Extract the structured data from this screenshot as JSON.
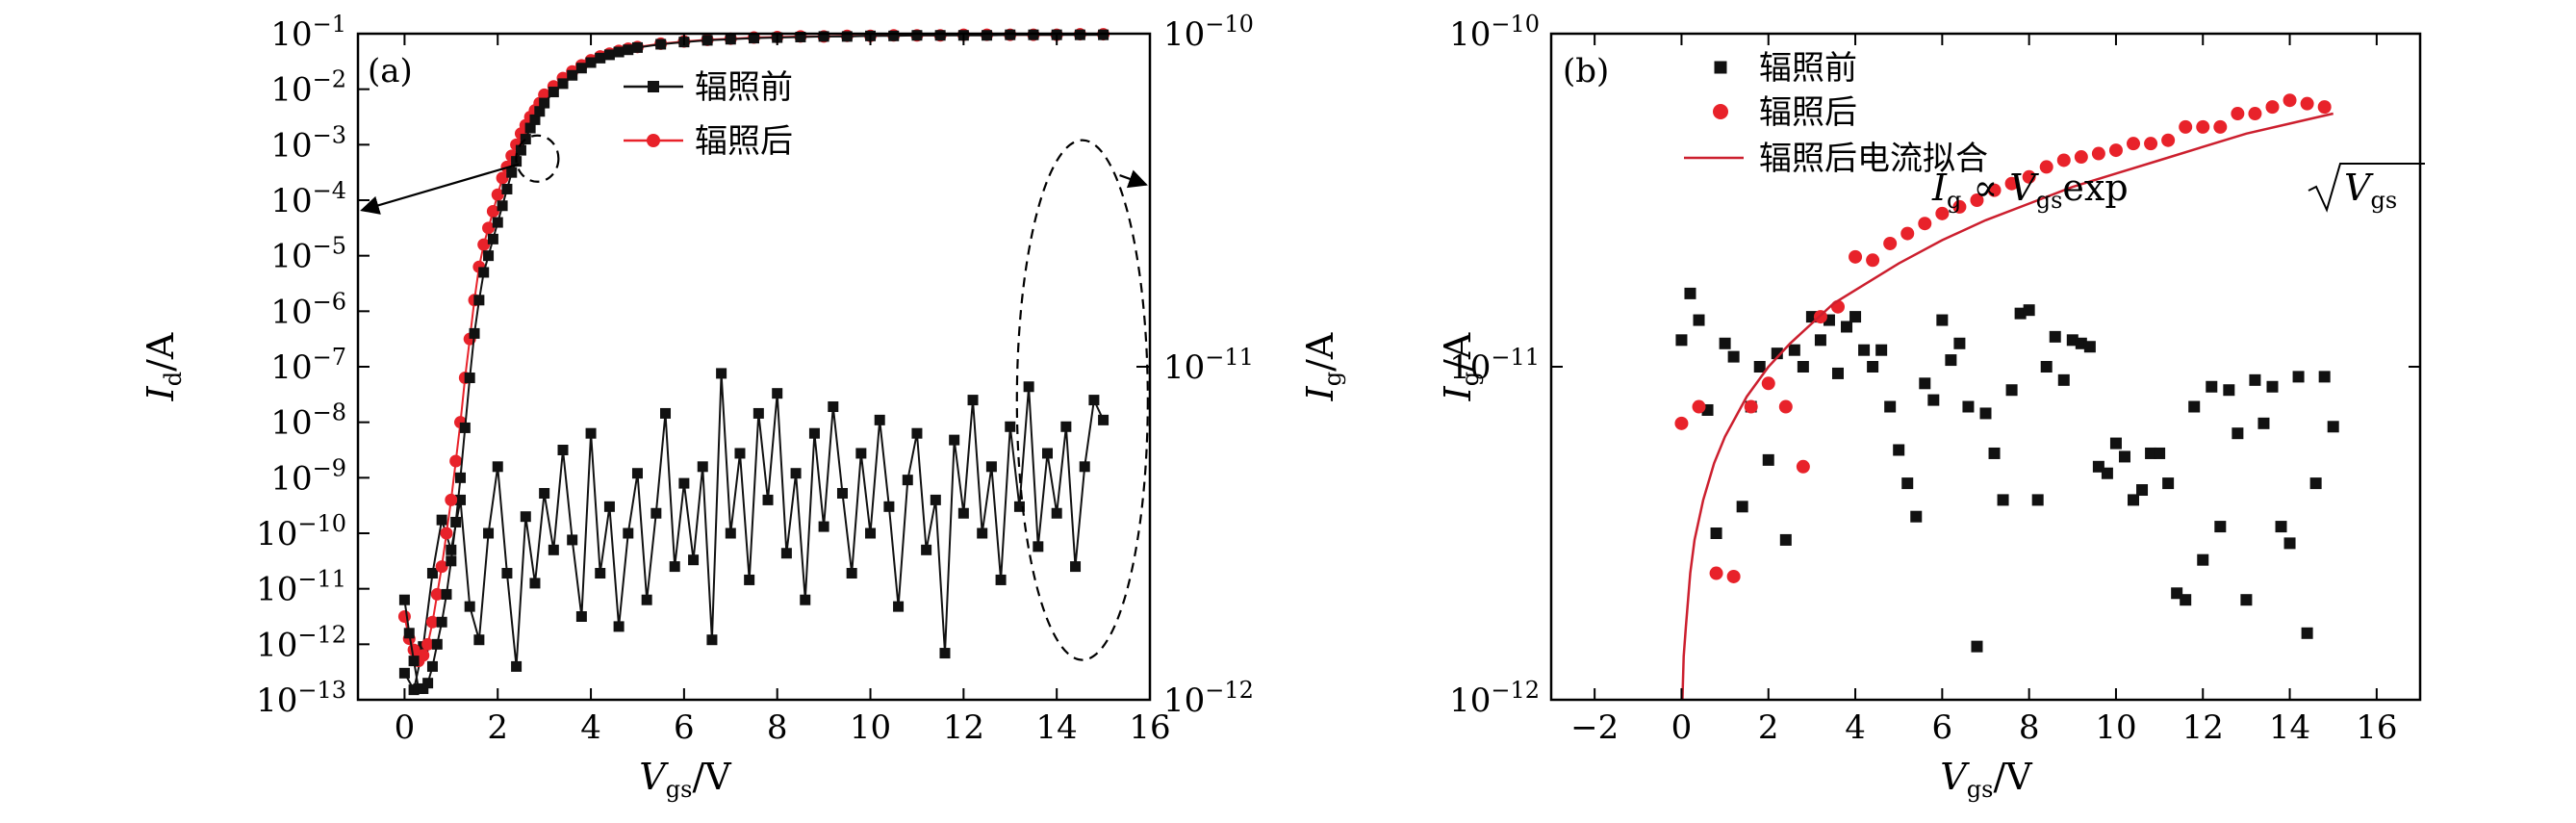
{
  "colors": {
    "black_series": "#111111",
    "red_series": "#e8222a",
    "fit_line": "#cc1f2e"
  },
  "chart_data": [
    {
      "type": "line",
      "panel_label": "(a)",
      "xlabel": {
        "main": "V",
        "sub": "gs",
        "rest": "/V"
      },
      "ylabel_left": {
        "main": "I",
        "sub": "d",
        "rest": "/A"
      },
      "ylabel_right": {
        "main": "I",
        "sub": "g",
        "rest": "/A"
      },
      "xlim": [
        -1,
        16
      ],
      "xticks": [
        0,
        2,
        4,
        6,
        8,
        10,
        12,
        14,
        16
      ],
      "xtick_labels": [
        "0",
        "2",
        "4",
        "6",
        "8",
        "10",
        "12",
        "14",
        "16"
      ],
      "ylim_left_log10": [
        -13,
        -1
      ],
      "yticks_left_labels": [
        {
          "b": "10",
          "e": "−1"
        },
        {
          "b": "10",
          "e": "−2"
        },
        {
          "b": "10",
          "e": "−3"
        },
        {
          "b": "10",
          "e": "−4"
        },
        {
          "b": "10",
          "e": "−5"
        },
        {
          "b": "10",
          "e": "−6"
        },
        {
          "b": "10",
          "e": "−7"
        },
        {
          "b": "10",
          "e": "−8"
        },
        {
          "b": "10",
          "e": "−9"
        },
        {
          "b": "10",
          "e": "−10"
        },
        {
          "b": "10",
          "e": "−11"
        },
        {
          "b": "10",
          "e": "−12"
        },
        {
          "b": "10",
          "e": "−13"
        }
      ],
      "ylim_right_log10": [
        -12,
        -10
      ],
      "yticks_right_labels": [
        {
          "b": "10",
          "e": "−10"
        },
        {
          "b": "10",
          "e": "−11"
        },
        {
          "b": "10",
          "e": "−12"
        }
      ],
      "legend": [
        {
          "label": "辐照前",
          "series": "before"
        },
        {
          "label": "辐照后",
          "series": "after"
        }
      ],
      "series": [
        {
          "name": "辐照前",
          "key": "before",
          "axis": "left",
          "marker": "square",
          "x": [
            0,
            0.1,
            0.2,
            0.3,
            0.4,
            0.5,
            0.6,
            0.7,
            0.8,
            0.9,
            1.0,
            1.1,
            1.2,
            1.3,
            1.4,
            1.5,
            1.6,
            1.7,
            1.8,
            1.9,
            2.0,
            2.1,
            2.2,
            2.3,
            2.4,
            2.5,
            2.6,
            2.7,
            2.8,
            2.9,
            3.0,
            3.2,
            3.4,
            3.6,
            3.8,
            4.0,
            4.2,
            4.4,
            4.6,
            4.8,
            5.0,
            5.5,
            6.0,
            6.5,
            7.0,
            7.5,
            8.0,
            8.5,
            9.0,
            9.5,
            10.0,
            10.5,
            11.0,
            11.5,
            12.0,
            12.5,
            13.0,
            13.5,
            14.0,
            14.5,
            15.0
          ],
          "y_log10": [
            -11.2,
            -11.8,
            -12.3,
            -12.8,
            -12.8,
            -12.7,
            -12.4,
            -12.0,
            -11.6,
            -11.1,
            -10.5,
            -9.8,
            -9.0,
            -8.1,
            -7.2,
            -6.4,
            -5.8,
            -5.3,
            -5.0,
            -4.7,
            -4.4,
            -4.1,
            -3.8,
            -3.5,
            -3.3,
            -3.1,
            -2.9,
            -2.7,
            -2.55,
            -2.4,
            -2.25,
            -2.05,
            -1.9,
            -1.75,
            -1.62,
            -1.52,
            -1.44,
            -1.38,
            -1.33,
            -1.29,
            -1.25,
            -1.19,
            -1.15,
            -1.12,
            -1.1,
            -1.08,
            -1.07,
            -1.06,
            -1.05,
            -1.05,
            -1.04,
            -1.04,
            -1.03,
            -1.03,
            -1.03,
            -1.03,
            -1.02,
            -1.02,
            -1.02,
            -1.02,
            -1.02
          ]
        },
        {
          "name": "辐照后",
          "key": "after",
          "axis": "left",
          "marker": "circle",
          "x": [
            0,
            0.1,
            0.2,
            0.3,
            0.4,
            0.5,
            0.6,
            0.7,
            0.8,
            0.9,
            1.0,
            1.1,
            1.2,
            1.3,
            1.4,
            1.5,
            1.6,
            1.7,
            1.8,
            1.9,
            2.0,
            2.1,
            2.2,
            2.3,
            2.4,
            2.5,
            2.6,
            2.7,
            2.8,
            2.9,
            3.0,
            3.2,
            3.4,
            3.6,
            3.8,
            4.0,
            4.2,
            4.4,
            4.6,
            4.8,
            5.0,
            5.5,
            6.0,
            6.5,
            7.0,
            7.5,
            8.0,
            8.5,
            9.0,
            9.5,
            10.0,
            10.5,
            11.0,
            11.5,
            12.0,
            12.5,
            13.0,
            13.5,
            14.0,
            14.5,
            15.0
          ],
          "y_log10": [
            -11.5,
            -11.9,
            -12.1,
            -12.3,
            -12.2,
            -12.0,
            -11.6,
            -11.1,
            -10.6,
            -10.0,
            -9.4,
            -8.7,
            -8.0,
            -7.2,
            -6.5,
            -5.8,
            -5.2,
            -4.8,
            -4.5,
            -4.2,
            -3.9,
            -3.6,
            -3.4,
            -3.2,
            -3.0,
            -2.8,
            -2.65,
            -2.5,
            -2.38,
            -2.25,
            -2.1,
            -1.95,
            -1.8,
            -1.68,
            -1.57,
            -1.48,
            -1.41,
            -1.36,
            -1.31,
            -1.27,
            -1.24,
            -1.18,
            -1.14,
            -1.11,
            -1.09,
            -1.07,
            -1.06,
            -1.05,
            -1.05,
            -1.04,
            -1.04,
            -1.03,
            -1.03,
            -1.03,
            -1.02,
            -1.02,
            -1.02,
            -1.02,
            -1.02,
            -1.01,
            -1.01
          ]
        },
        {
          "name": "辐照前",
          "key": "before_ig",
          "axis": "right",
          "marker": "square",
          "x": [
            0,
            0.2,
            0.4,
            0.6,
            0.8,
            1.0,
            1.2,
            1.4,
            1.6,
            1.8,
            2.0,
            2.2,
            2.4,
            2.6,
            2.8,
            3.0,
            3.2,
            3.4,
            3.6,
            3.8,
            4.0,
            4.2,
            4.4,
            4.6,
            4.8,
            5.0,
            5.2,
            5.4,
            5.6,
            5.8,
            6.0,
            6.2,
            6.4,
            6.6,
            6.8,
            7.0,
            7.2,
            7.4,
            7.6,
            7.8,
            8.0,
            8.2,
            8.4,
            8.6,
            8.8,
            9.0,
            9.2,
            9.4,
            9.6,
            9.8,
            10.0,
            10.2,
            10.4,
            10.6,
            10.8,
            11.0,
            11.2,
            11.4,
            11.6,
            11.8,
            12.0,
            12.2,
            12.4,
            12.6,
            12.8,
            13.0,
            13.2,
            13.4,
            13.6,
            13.8,
            14.0,
            14.2,
            14.4,
            14.6,
            14.8,
            15.0
          ],
          "y_log10": [
            -11.92,
            -11.97,
            -11.84,
            -11.62,
            -11.46,
            -11.55,
            -11.4,
            -11.72,
            -11.82,
            -11.5,
            -11.3,
            -11.62,
            -11.9,
            -11.45,
            -11.65,
            -11.38,
            -11.55,
            -11.25,
            -11.52,
            -11.75,
            -11.2,
            -11.62,
            -11.42,
            -11.78,
            -11.5,
            -11.32,
            -11.7,
            -11.44,
            -11.14,
            -11.6,
            -11.35,
            -11.58,
            -11.3,
            -11.82,
            -11.02,
            -11.5,
            -11.26,
            -11.64,
            -11.14,
            -11.4,
            -11.08,
            -11.56,
            -11.32,
            -11.7,
            -11.2,
            -11.48,
            -11.12,
            -11.38,
            -11.62,
            -11.26,
            -11.5,
            -11.16,
            -11.42,
            -11.72,
            -11.34,
            -11.2,
            -11.55,
            -11.4,
            -11.86,
            -11.22,
            -11.44,
            -11.1,
            -11.5,
            -11.3,
            -11.64,
            -11.18,
            -11.42,
            -11.06,
            -11.54,
            -11.26,
            -11.44,
            -11.18,
            -11.6,
            -11.3,
            -11.1,
            -11.16
          ]
        }
      ]
    },
    {
      "type": "scatter",
      "panel_label": "(b)",
      "xlabel": {
        "main": "V",
        "sub": "gs",
        "rest": "/V"
      },
      "ylabel": {
        "main": "I",
        "sub": "g",
        "rest": "/A"
      },
      "xlim": [
        -3,
        17
      ],
      "xticks": [
        -2,
        0,
        2,
        4,
        6,
        8,
        10,
        12,
        14,
        16
      ],
      "xtick_labels": [
        "−2",
        "0",
        "2",
        "4",
        "6",
        "8",
        "10",
        "12",
        "14",
        "16"
      ],
      "ylim_log10": [
        -12,
        -10
      ],
      "ytick_labels": [
        {
          "b": "10",
          "e": "−10"
        },
        {
          "b": "10",
          "e": "−11"
        },
        {
          "b": "10",
          "e": "−12"
        }
      ],
      "legend": [
        {
          "label": "辐照前",
          "series": "before"
        },
        {
          "label": "辐照后",
          "series": "after"
        },
        {
          "label": "辐照后电流拟合",
          "series": "fit"
        }
      ],
      "annotation": {
        "i": "I",
        "i_sub": "g",
        "prop": " ∝ ",
        "v": "V",
        "v_sub": "gs",
        "exp": "exp",
        "sqrt_v": "V",
        "sqrt_sub": "gs"
      },
      "series": [
        {
          "name": "辐照前",
          "key": "before",
          "marker": "square",
          "x": [
            0,
            0.2,
            0.4,
            0.6,
            0.8,
            1.0,
            1.2,
            1.4,
            1.6,
            1.8,
            2.0,
            2.2,
            2.4,
            2.6,
            2.8,
            3.0,
            3.2,
            3.4,
            3.6,
            3.8,
            4.0,
            4.2,
            4.4,
            4.6,
            4.8,
            5.0,
            5.2,
            5.4,
            5.6,
            5.8,
            6.0,
            6.2,
            6.4,
            6.6,
            6.8,
            7.0,
            7.2,
            7.4,
            7.6,
            7.8,
            8.0,
            8.2,
            8.4,
            8.6,
            8.8,
            9.0,
            9.2,
            9.4,
            9.6,
            9.8,
            10.0,
            10.2,
            10.4,
            10.6,
            10.8,
            11.0,
            11.2,
            11.4,
            11.6,
            11.8,
            12.0,
            12.2,
            12.4,
            12.6,
            12.8,
            13.0,
            13.2,
            13.4,
            13.6,
            13.8,
            14.0,
            14.2,
            14.4,
            14.6,
            14.8,
            15.0
          ],
          "y_log10": [
            -10.92,
            -10.78,
            -10.86,
            -11.13,
            -11.5,
            -10.93,
            -10.97,
            -11.42,
            -11.12,
            -11.0,
            -11.28,
            -10.96,
            -11.52,
            -10.95,
            -11.0,
            -10.85,
            -10.92,
            -10.86,
            -11.02,
            -10.88,
            -10.85,
            -10.95,
            -11.0,
            -10.95,
            -11.12,
            -11.25,
            -11.35,
            -11.45,
            -11.05,
            -11.1,
            -10.86,
            -10.98,
            -10.93,
            -11.12,
            -11.84,
            -11.14,
            -11.26,
            -11.4,
            -11.07,
            -10.84,
            -10.83,
            -11.4,
            -11.0,
            -10.91,
            -11.04,
            -10.92,
            -10.93,
            -10.94,
            -11.3,
            -11.32,
            -11.23,
            -11.27,
            -11.4,
            -11.37,
            -11.26,
            -11.26,
            -11.35,
            -11.68,
            -11.7,
            -11.12,
            -11.58,
            -11.06,
            -11.48,
            -11.07,
            -11.2,
            -11.7,
            -11.04,
            -11.17,
            -11.06,
            -11.48,
            -11.53,
            -11.03,
            -11.8,
            -11.35,
            -11.03,
            -11.18
          ]
        },
        {
          "name": "辐照后",
          "key": "after",
          "marker": "circle",
          "x": [
            0,
            0.4,
            0.8,
            1.2,
            1.6,
            2.0,
            2.4,
            2.8,
            3.2,
            3.6,
            4.0,
            4.4,
            4.8,
            5.2,
            5.6,
            6.0,
            6.4,
            6.8,
            7.2,
            7.6,
            8.0,
            8.4,
            8.8,
            9.2,
            9.6,
            10.0,
            10.4,
            10.8,
            11.2,
            11.6,
            12.0,
            12.4,
            12.8,
            13.2,
            13.6,
            14.0,
            14.4,
            14.8
          ],
          "y_log10": [
            -11.17,
            -11.12,
            -11.62,
            -11.63,
            -11.12,
            -11.05,
            -11.12,
            -11.3,
            -10.85,
            -10.82,
            -10.67,
            -10.68,
            -10.63,
            -10.6,
            -10.57,
            -10.54,
            -10.52,
            -10.5,
            -10.47,
            -10.45,
            -10.43,
            -10.4,
            -10.38,
            -10.37,
            -10.36,
            -10.35,
            -10.33,
            -10.33,
            -10.32,
            -10.28,
            -10.28,
            -10.28,
            -10.24,
            -10.24,
            -10.22,
            -10.2,
            -10.21,
            -10.22
          ]
        },
        {
          "name": "辐照后电流拟合",
          "key": "fit",
          "marker": "none",
          "x": [
            0.02,
            0.05,
            0.1,
            0.2,
            0.3,
            0.5,
            0.75,
            1.0,
            1.5,
            2.0,
            2.5,
            3.0,
            3.5,
            4.0,
            5.0,
            6.0,
            7.0,
            8.0,
            9.0,
            10.0,
            11.0,
            12.0,
            13.0,
            14.0,
            15.0
          ],
          "y_log10": [
            -12.0,
            -11.87,
            -11.78,
            -11.62,
            -11.52,
            -11.4,
            -11.29,
            -11.21,
            -11.09,
            -11.0,
            -10.93,
            -10.87,
            -10.81,
            -10.77,
            -10.69,
            -10.62,
            -10.56,
            -10.51,
            -10.46,
            -10.42,
            -10.38,
            -10.34,
            -10.3,
            -10.27,
            -10.24
          ]
        }
      ]
    }
  ]
}
